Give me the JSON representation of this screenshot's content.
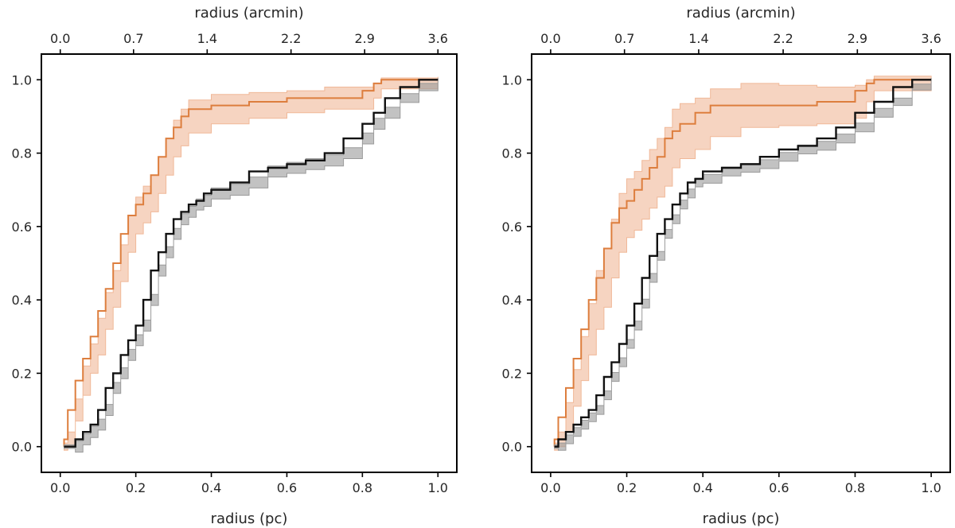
{
  "chart_data": [
    {
      "type": "line",
      "panel": "left",
      "xlabel": "radius (pc)",
      "x2label": "radius (arcmin)",
      "xlim": [
        -0.05,
        1.05
      ],
      "ylim": [
        -0.07,
        1.07
      ],
      "xticks": [
        0.0,
        0.2,
        0.4,
        0.6,
        0.8,
        1.0
      ],
      "xticklabels": [
        "0.0",
        "0.2",
        "0.4",
        "0.6",
        "0.8",
        "1.0"
      ],
      "yticks": [
        0.0,
        0.2,
        0.4,
        0.6,
        0.8,
        1.0
      ],
      "yticklabels": [
        "0.0",
        "0.2",
        "0.4",
        "0.6",
        "0.8",
        "1.0"
      ],
      "x2ticks": [
        0.0,
        0.194,
        0.389,
        0.611,
        0.806,
        1.0
      ],
      "x2ticklabels": [
        "0.0",
        "0.7",
        "1.4",
        "2.2",
        "2.9",
        "3.6"
      ],
      "series": [
        {
          "name": "orange",
          "color": "#dd7e3e",
          "band_color": "#f0b898",
          "x": [
            0.01,
            0.02,
            0.04,
            0.06,
            0.08,
            0.1,
            0.12,
            0.14,
            0.16,
            0.18,
            0.2,
            0.22,
            0.24,
            0.26,
            0.28,
            0.3,
            0.32,
            0.34,
            0.4,
            0.5,
            0.6,
            0.7,
            0.8,
            0.83,
            0.85,
            1.0
          ],
          "y": [
            0.0,
            0.02,
            0.1,
            0.18,
            0.24,
            0.3,
            0.37,
            0.43,
            0.5,
            0.58,
            0.63,
            0.66,
            0.69,
            0.74,
            0.79,
            0.84,
            0.87,
            0.9,
            0.92,
            0.93,
            0.94,
            0.95,
            0.95,
            0.97,
            0.99,
            1.0
          ],
          "band_halfwidth": [
            0.01,
            0.02,
            0.03,
            0.04,
            0.04,
            0.05,
            0.05,
            0.05,
            0.05,
            0.05,
            0.05,
            0.05,
            0.05,
            0.05,
            0.05,
            0.05,
            0.05,
            0.045,
            0.04,
            0.035,
            0.03,
            0.03,
            0.03,
            0.02,
            0.015,
            0.008
          ]
        },
        {
          "name": "black",
          "color": "#111111",
          "band_color": "#9a9a9a",
          "x": [
            0.01,
            0.04,
            0.06,
            0.08,
            0.1,
            0.12,
            0.14,
            0.16,
            0.18,
            0.2,
            0.22,
            0.24,
            0.26,
            0.28,
            0.3,
            0.32,
            0.34,
            0.36,
            0.38,
            0.4,
            0.45,
            0.5,
            0.55,
            0.6,
            0.65,
            0.7,
            0.75,
            0.8,
            0.83,
            0.86,
            0.9,
            0.95,
            1.0
          ],
          "y": [
            0.0,
            0.0,
            0.02,
            0.04,
            0.06,
            0.1,
            0.16,
            0.2,
            0.25,
            0.29,
            0.33,
            0.4,
            0.48,
            0.53,
            0.58,
            0.62,
            0.64,
            0.66,
            0.67,
            0.69,
            0.7,
            0.72,
            0.75,
            0.76,
            0.77,
            0.78,
            0.8,
            0.84,
            0.88,
            0.91,
            0.95,
            0.98,
            1.0
          ],
          "band_halfwidth": [
            0.005,
            0.015,
            0.015,
            0.015,
            0.015,
            0.015,
            0.015,
            0.015,
            0.015,
            0.015,
            0.015,
            0.015,
            0.015,
            0.015,
            0.015,
            0.015,
            0.015,
            0.015,
            0.015,
            0.015,
            0.015,
            0.015,
            0.015,
            0.015,
            0.015,
            0.015,
            0.015,
            0.015,
            0.015,
            0.015,
            0.012,
            0.01,
            0.005
          ]
        }
      ]
    },
    {
      "type": "line",
      "panel": "right",
      "xlabel": "radius (pc)",
      "x2label": "radius (arcmin)",
      "xlim": [
        -0.05,
        1.05
      ],
      "ylim": [
        -0.07,
        1.07
      ],
      "xticks": [
        0.0,
        0.2,
        0.4,
        0.6,
        0.8,
        1.0
      ],
      "xticklabels": [
        "0.0",
        "0.2",
        "0.4",
        "0.6",
        "0.8",
        "1.0"
      ],
      "yticks": [
        0.0,
        0.2,
        0.4,
        0.6,
        0.8,
        1.0
      ],
      "yticklabels": [
        "0.0",
        "0.2",
        "0.4",
        "0.6",
        "0.8",
        "1.0"
      ],
      "x2ticks": [
        0.0,
        0.194,
        0.389,
        0.611,
        0.806,
        1.0
      ],
      "x2ticklabels": [
        "0.0",
        "0.7",
        "1.4",
        "2.2",
        "2.9",
        "3.6"
      ],
      "series": [
        {
          "name": "orange",
          "color": "#dd7e3e",
          "band_color": "#f0b898",
          "x": [
            0.01,
            0.02,
            0.04,
            0.06,
            0.08,
            0.1,
            0.12,
            0.14,
            0.16,
            0.18,
            0.2,
            0.22,
            0.24,
            0.26,
            0.28,
            0.3,
            0.32,
            0.34,
            0.38,
            0.42,
            0.5,
            0.6,
            0.7,
            0.8,
            0.83,
            0.85,
            1.0
          ],
          "y": [
            0.0,
            0.02,
            0.08,
            0.16,
            0.24,
            0.32,
            0.4,
            0.46,
            0.54,
            0.61,
            0.65,
            0.67,
            0.7,
            0.73,
            0.76,
            0.79,
            0.84,
            0.86,
            0.88,
            0.91,
            0.93,
            0.93,
            0.93,
            0.94,
            0.97,
            0.99,
            1.0
          ],
          "band_halfwidth": [
            0.01,
            0.02,
            0.04,
            0.05,
            0.06,
            0.07,
            0.08,
            0.08,
            0.08,
            0.08,
            0.08,
            0.08,
            0.08,
            0.08,
            0.08,
            0.08,
            0.08,
            0.075,
            0.07,
            0.065,
            0.06,
            0.055,
            0.05,
            0.045,
            0.03,
            0.02,
            0.01
          ]
        },
        {
          "name": "black",
          "color": "#111111",
          "band_color": "#9a9a9a",
          "x": [
            0.01,
            0.02,
            0.04,
            0.06,
            0.08,
            0.1,
            0.12,
            0.14,
            0.16,
            0.18,
            0.2,
            0.22,
            0.24,
            0.26,
            0.28,
            0.3,
            0.32,
            0.34,
            0.36,
            0.38,
            0.4,
            0.45,
            0.5,
            0.55,
            0.6,
            0.65,
            0.7,
            0.75,
            0.8,
            0.85,
            0.9,
            0.95,
            1.0
          ],
          "y": [
            0.0,
            0.0,
            0.02,
            0.04,
            0.06,
            0.08,
            0.1,
            0.14,
            0.19,
            0.23,
            0.28,
            0.33,
            0.39,
            0.46,
            0.52,
            0.58,
            0.62,
            0.66,
            0.69,
            0.72,
            0.73,
            0.75,
            0.76,
            0.77,
            0.79,
            0.81,
            0.82,
            0.84,
            0.87,
            0.91,
            0.94,
            0.98,
            1.0
          ],
          "band_halfwidth": [
            0.005,
            0.01,
            0.012,
            0.012,
            0.012,
            0.012,
            0.012,
            0.012,
            0.012,
            0.012,
            0.012,
            0.012,
            0.012,
            0.012,
            0.012,
            0.012,
            0.012,
            0.012,
            0.012,
            0.012,
            0.012,
            0.012,
            0.012,
            0.012,
            0.012,
            0.012,
            0.012,
            0.012,
            0.012,
            0.012,
            0.01,
            0.008,
            0.005
          ]
        }
      ]
    }
  ]
}
